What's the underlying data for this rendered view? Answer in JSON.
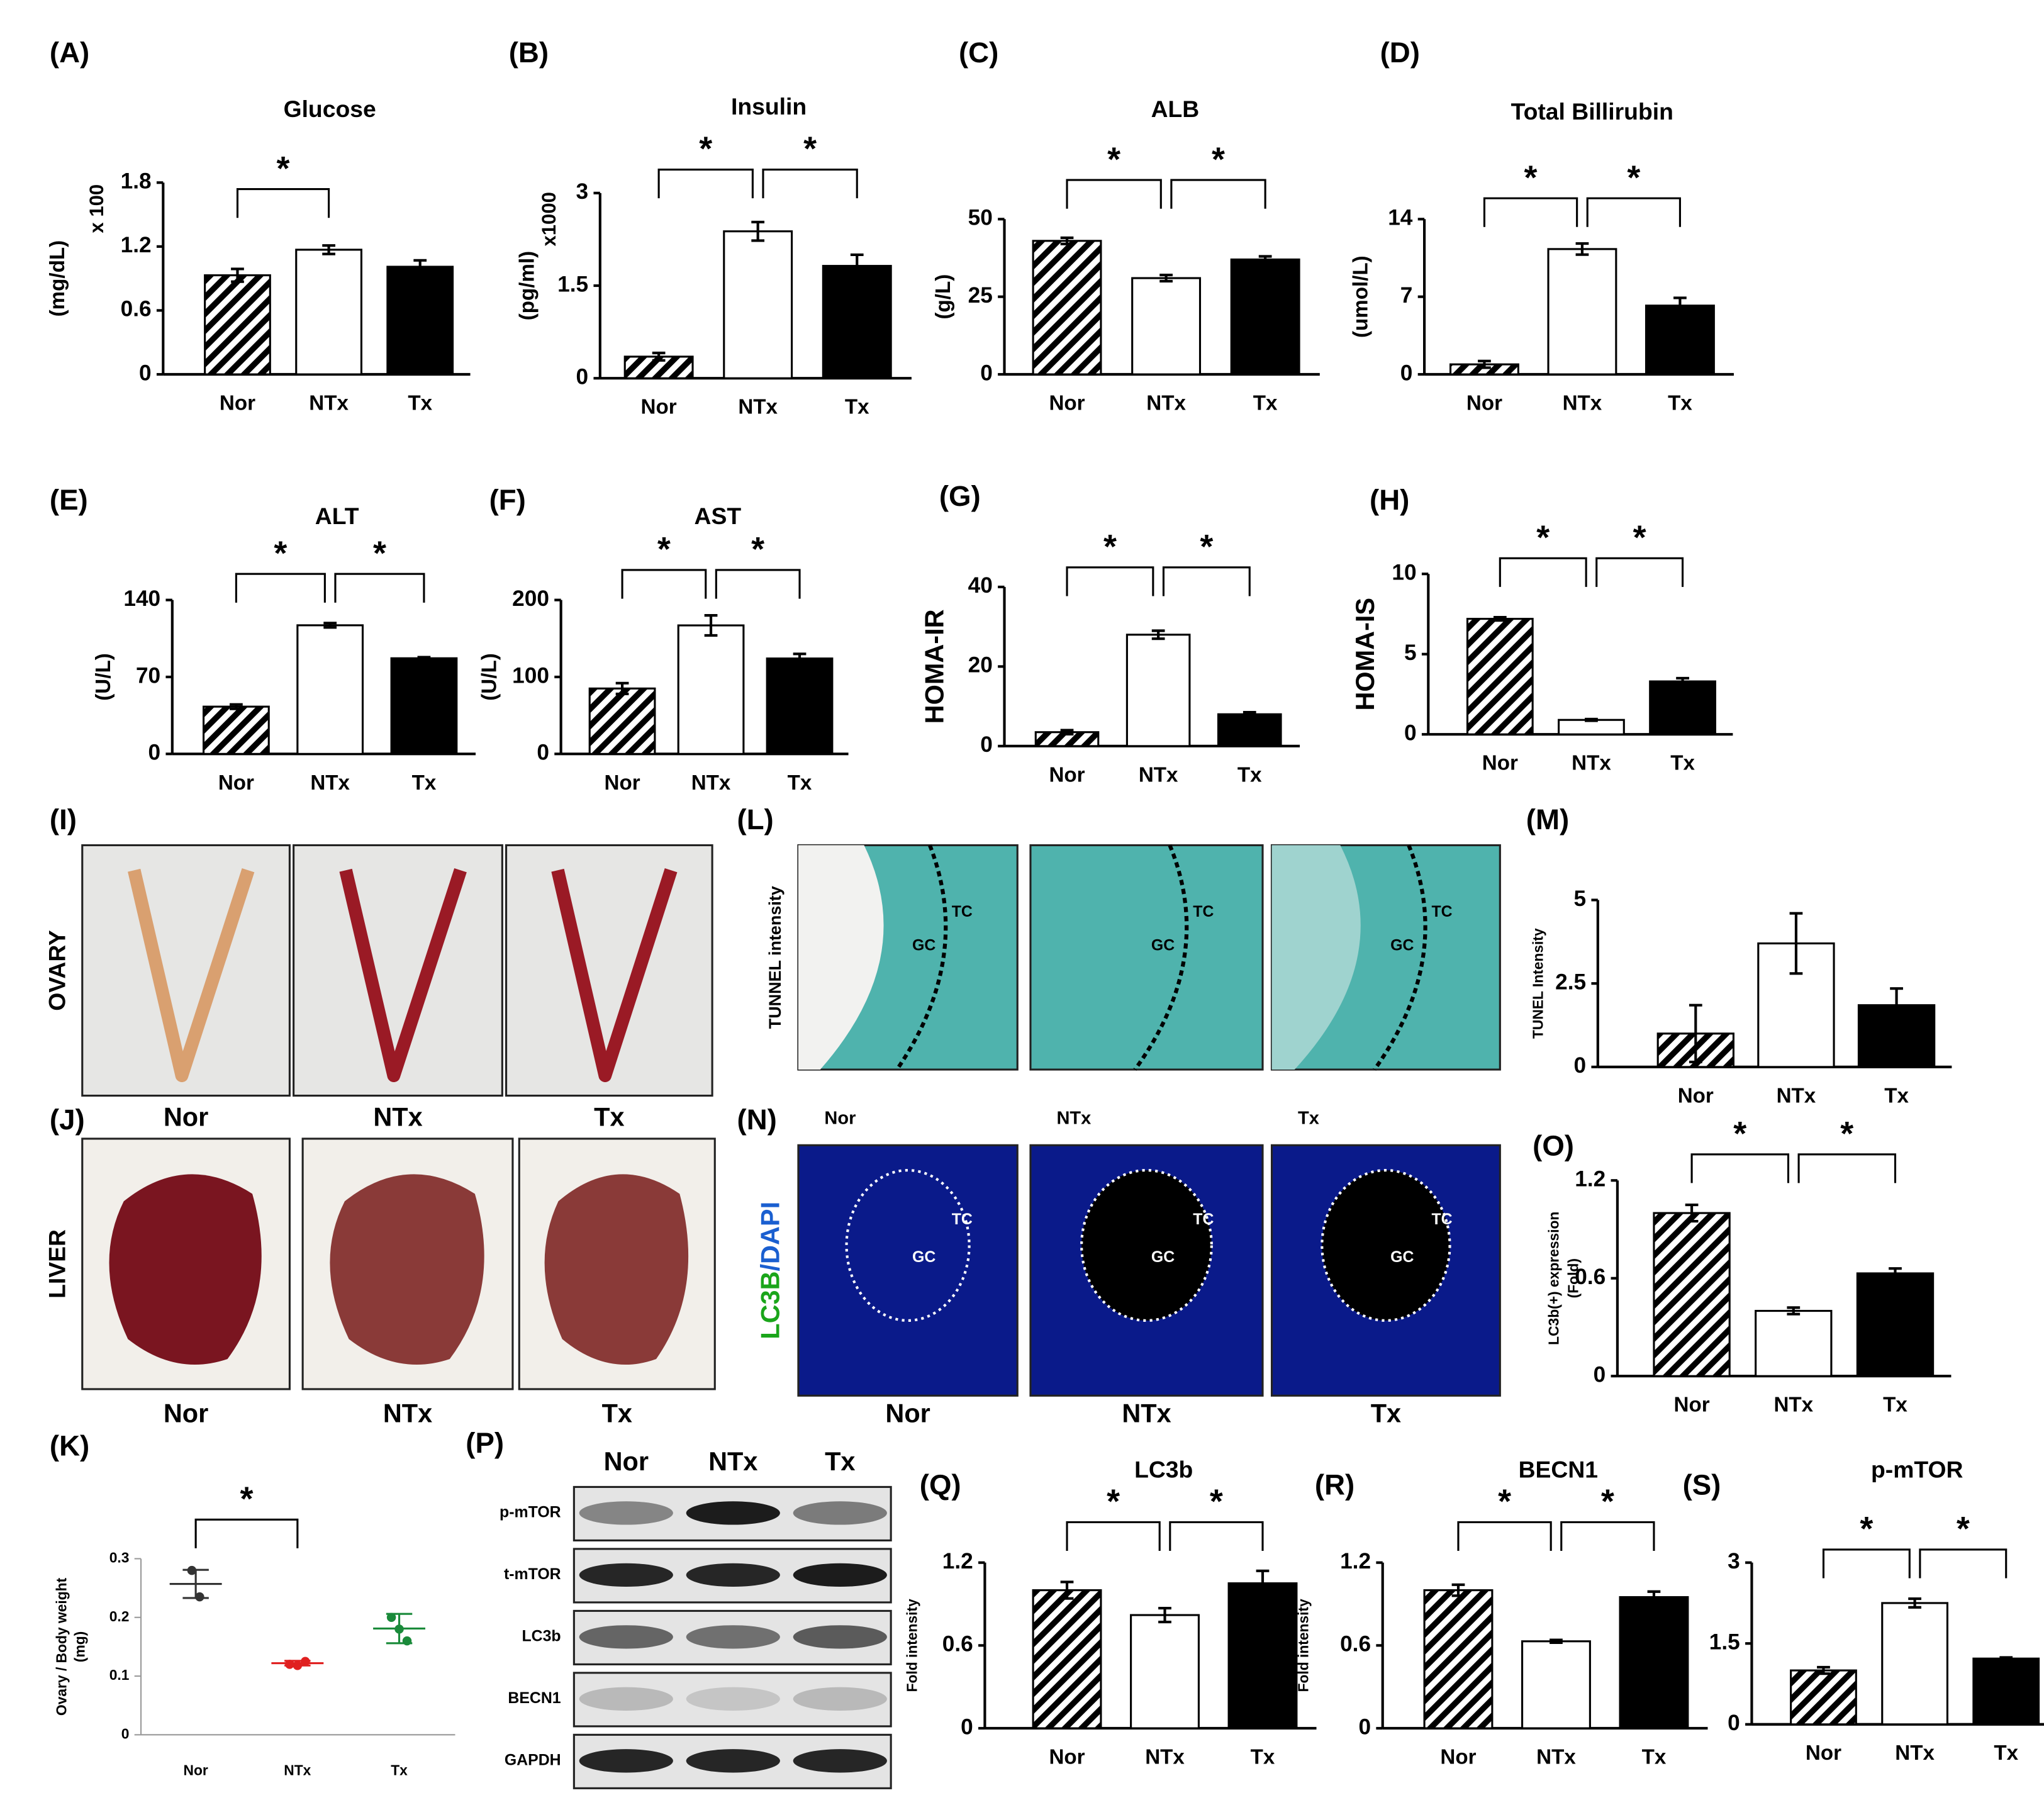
{
  "chart_data": [
    {
      "panel": "(A)",
      "type": "bar",
      "title": "Glucose",
      "ylabel": "(mg/dL)",
      "multiplier": "x 100",
      "categories": [
        "Nor",
        "NTx",
        "Tx"
      ],
      "values": [
        0.93,
        1.17,
        1.01
      ],
      "errors": [
        0.06,
        0.04,
        0.06
      ],
      "colors": [
        "hatch",
        "#ffffff",
        "#000000"
      ],
      "ylim": [
        0,
        1.8
      ],
      "yticks": [
        0,
        0.6,
        1.2,
        1.8
      ],
      "significance": [
        {
          "groups": [
            "Nor",
            "NTx"
          ],
          "label": "*"
        }
      ]
    },
    {
      "panel": "(B)",
      "type": "bar",
      "title": "Insulin",
      "ylabel": "(pg/ml)",
      "multiplier": "x1000",
      "categories": [
        "Nor",
        "NTx",
        "Tx"
      ],
      "values": [
        0.35,
        2.38,
        1.82
      ],
      "errors": [
        0.06,
        0.15,
        0.18
      ],
      "colors": [
        "hatch",
        "#ffffff",
        "#000000"
      ],
      "ylim": [
        0,
        3
      ],
      "yticks": [
        0,
        1.5,
        3
      ],
      "significance": [
        {
          "groups": [
            "Nor",
            "NTx"
          ],
          "label": "*"
        },
        {
          "groups": [
            "NTx",
            "Tx"
          ],
          "label": "*"
        }
      ]
    },
    {
      "panel": "(C)",
      "type": "bar",
      "title": "ALB",
      "ylabel": "(g/L)",
      "categories": [
        "Nor",
        "NTx",
        "Tx"
      ],
      "values": [
        43,
        31,
        37
      ],
      "errors": [
        1,
        1,
        1
      ],
      "colors": [
        "hatch",
        "#ffffff",
        "#000000"
      ],
      "ylim": [
        0,
        50
      ],
      "yticks": [
        0,
        25,
        50
      ],
      "significance": [
        {
          "groups": [
            "Nor",
            "NTx"
          ],
          "label": "*"
        },
        {
          "groups": [
            "NTx",
            "Tx"
          ],
          "label": "*"
        }
      ]
    },
    {
      "panel": "(D)",
      "type": "bar",
      "title": "Total Billirubin",
      "ylabel": "(umol/L)",
      "categories": [
        "Nor",
        "NTx",
        "Tx"
      ],
      "values": [
        0.9,
        11.3,
        6.2
      ],
      "errors": [
        0.3,
        0.5,
        0.7
      ],
      "colors": [
        "hatch",
        "#ffffff",
        "#000000"
      ],
      "ylim": [
        0,
        14
      ],
      "yticks": [
        0,
        7,
        14
      ],
      "significance": [
        {
          "groups": [
            "Nor",
            "NTx"
          ],
          "label": "*"
        },
        {
          "groups": [
            "NTx",
            "Tx"
          ],
          "label": "*"
        }
      ]
    },
    {
      "panel": "(E)",
      "type": "bar",
      "title": "ALT",
      "ylabel": "(U/L)",
      "categories": [
        "Nor",
        "NTx",
        "Tx"
      ],
      "values": [
        43,
        117,
        87
      ],
      "errors": [
        2,
        2,
        1
      ],
      "colors": [
        "hatch",
        "#ffffff",
        "#000000"
      ],
      "ylim": [
        0,
        140
      ],
      "yticks": [
        0,
        70,
        140
      ],
      "significance": [
        {
          "groups": [
            "Nor",
            "NTx"
          ],
          "label": "*"
        },
        {
          "groups": [
            "NTx",
            "Tx"
          ],
          "label": "*"
        }
      ]
    },
    {
      "panel": "(F)",
      "type": "bar",
      "title": "AST",
      "ylabel": "(U/L)",
      "categories": [
        "Nor",
        "NTx",
        "Tx"
      ],
      "values": [
        85,
        167,
        124
      ],
      "errors": [
        7,
        13,
        6
      ],
      "colors": [
        "hatch",
        "#ffffff",
        "#000000"
      ],
      "ylim": [
        0,
        200
      ],
      "yticks": [
        0,
        100,
        200
      ],
      "significance": [
        {
          "groups": [
            "Nor",
            "NTx"
          ],
          "label": "*"
        },
        {
          "groups": [
            "NTx",
            "Tx"
          ],
          "label": "*"
        }
      ]
    },
    {
      "panel": "(G)",
      "type": "bar",
      "ylabel": "HOMA-IR",
      "categories": [
        "Nor",
        "NTx",
        "Tx"
      ],
      "values": [
        3.5,
        28,
        8
      ],
      "errors": [
        0.5,
        1,
        0.5
      ],
      "colors": [
        "hatch",
        "#ffffff",
        "#000000"
      ],
      "ylim": [
        0,
        40
      ],
      "yticks": [
        0,
        20,
        40
      ],
      "significance": [
        {
          "groups": [
            "Nor",
            "NTx"
          ],
          "label": "*"
        },
        {
          "groups": [
            "NTx",
            "Tx"
          ],
          "label": "*"
        }
      ]
    },
    {
      "panel": "(H)",
      "type": "bar",
      "ylabel": "HOMA-IS",
      "categories": [
        "Nor",
        "NTx",
        "Tx"
      ],
      "values": [
        7.2,
        0.9,
        3.3
      ],
      "errors": [
        0.1,
        0.05,
        0.2
      ],
      "colors": [
        "hatch",
        "#ffffff",
        "#000000"
      ],
      "ylim": [
        0,
        10
      ],
      "yticks": [
        0,
        5,
        10
      ],
      "significance": [
        {
          "groups": [
            "Nor",
            "NTx"
          ],
          "label": "*"
        },
        {
          "groups": [
            "NTx",
            "Tx"
          ],
          "label": "*"
        }
      ]
    },
    {
      "panel": "(K)",
      "type": "dotplot",
      "ylabel": [
        "Ovary / Body weight",
        "(mg)"
      ],
      "categories": [
        "Nor",
        "NTx",
        "Tx"
      ],
      "groups": [
        {
          "color": "#333333",
          "values": [
            0.28,
            0.235
          ]
        },
        {
          "color": "#e02020",
          "values": [
            0.12,
            0.118,
            0.125
          ]
        },
        {
          "color": "#1a8a3a",
          "values": [
            0.2,
            0.18,
            0.16
          ]
        }
      ],
      "means": [
        0.257,
        0.122,
        0.181
      ],
      "errors": [
        0.024,
        0.004,
        0.025
      ],
      "ylim": [
        0,
        0.3
      ],
      "yticks": [
        0,
        0.1,
        0.2,
        0.3
      ],
      "significance": [
        {
          "groups": [
            "Nor",
            "NTx"
          ],
          "label": "*"
        }
      ]
    },
    {
      "panel": "(M)",
      "type": "bar",
      "ylabel": "TUNEL Intensity",
      "categories": [
        "Nor",
        "NTx",
        "Tx"
      ],
      "values": [
        1.0,
        3.7,
        1.85
      ],
      "errors": [
        0.85,
        0.9,
        0.5
      ],
      "colors": [
        "hatch",
        "#ffffff",
        "#000000"
      ],
      "ylim": [
        0,
        5
      ],
      "yticks": [
        0,
        2.5,
        5
      ],
      "significance": []
    },
    {
      "panel": "(O)",
      "type": "bar",
      "ylabel": [
        "LC3b(+) expression",
        "(Fold)"
      ],
      "categories": [
        "Nor",
        "NTx",
        "Tx"
      ],
      "values": [
        1.0,
        0.4,
        0.63
      ],
      "errors": [
        0.05,
        0.02,
        0.03
      ],
      "colors": [
        "hatch",
        "#ffffff",
        "#000000"
      ],
      "ylim": [
        0,
        1.2
      ],
      "yticks": [
        0,
        0.6,
        1.2
      ],
      "significance": [
        {
          "groups": [
            "Nor",
            "NTx"
          ],
          "label": "*"
        },
        {
          "groups": [
            "NTx",
            "Tx"
          ],
          "label": "*"
        }
      ]
    },
    {
      "panel": "(Q)",
      "type": "bar",
      "title": "LC3b",
      "ylabel": "Fold intensity",
      "categories": [
        "Nor",
        "NTx",
        "Tx"
      ],
      "values": [
        1.0,
        0.82,
        1.05
      ],
      "errors": [
        0.06,
        0.05,
        0.09
      ],
      "colors": [
        "hatch",
        "#ffffff",
        "#000000"
      ],
      "ylim": [
        0,
        1.2
      ],
      "yticks": [
        0,
        0.6,
        1.2
      ],
      "significance": [
        {
          "groups": [
            "Nor",
            "NTx"
          ],
          "label": "*"
        },
        {
          "groups": [
            "NTx",
            "Tx"
          ],
          "label": "*"
        }
      ]
    },
    {
      "panel": "(R)",
      "type": "bar",
      "title": "BECN1",
      "ylabel": "Fold intensity",
      "categories": [
        "Nor",
        "NTx",
        "Tx"
      ],
      "values": [
        1.0,
        0.63,
        0.95
      ],
      "errors": [
        0.04,
        0.01,
        0.04
      ],
      "colors": [
        "hatch",
        "#ffffff",
        "#000000"
      ],
      "ylim": [
        0,
        1.2
      ],
      "yticks": [
        0,
        0.6,
        1.2
      ],
      "significance": [
        {
          "groups": [
            "Nor",
            "NTx"
          ],
          "label": "*"
        },
        {
          "groups": [
            "NTx",
            "Tx"
          ],
          "label": "*"
        }
      ]
    },
    {
      "panel": "(S)",
      "type": "bar",
      "title": "p-mTOR",
      "ylabel": "Fold intensity",
      "categories": [
        "Nor",
        "NTx",
        "Tx"
      ],
      "values": [
        1.0,
        2.25,
        1.22
      ],
      "errors": [
        0.06,
        0.08,
        0.02
      ],
      "colors": [
        "hatch",
        "#ffffff",
        "#000000"
      ],
      "ylim": [
        0,
        3
      ],
      "yticks": [
        0,
        1.5,
        3
      ],
      "significance": [
        {
          "groups": [
            "Nor",
            "NTx"
          ],
          "label": "*"
        },
        {
          "groups": [
            "NTx",
            "Tx"
          ],
          "label": "*"
        }
      ]
    }
  ],
  "image_panels": [
    {
      "panel": "(I)",
      "side_label": "OVARY",
      "labels": [
        "Nor",
        "NTx",
        "Tx"
      ]
    },
    {
      "panel": "(J)",
      "side_label": "LIVER",
      "labels": [
        "Nor",
        "NTx",
        "Tx"
      ]
    },
    {
      "panel": "(L)",
      "side_label": "TUNNEL intensity",
      "labels": [
        "Nor",
        "NTx",
        "Tx"
      ],
      "regions": [
        "TC",
        "GC"
      ]
    },
    {
      "panel": "(N)",
      "side_label": [
        "LC3B",
        "/DAPI"
      ],
      "labels": [
        "Nor",
        "NTx",
        "Tx"
      ],
      "regions": [
        "TC",
        "GC"
      ]
    }
  ],
  "blot": {
    "panel": "(P)",
    "lanes": [
      "Nor",
      "NTx",
      "Tx"
    ],
    "rows": [
      "p-mTOR",
      "t-mTOR",
      "LC3b",
      "BECN1",
      "GAPDH"
    ]
  }
}
